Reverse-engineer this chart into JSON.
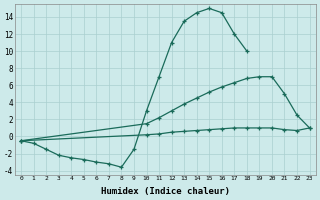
{
  "xlabel": "Humidex (Indice chaleur)",
  "background_color": "#cdeaea",
  "grid_color": "#aacfcf",
  "line_color": "#1a6b5a",
  "xlim": [
    -0.5,
    23.5
  ],
  "ylim": [
    -4.5,
    15.5
  ],
  "xticks": [
    0,
    1,
    2,
    3,
    4,
    5,
    6,
    7,
    8,
    9,
    10,
    11,
    12,
    13,
    14,
    15,
    16,
    17,
    18,
    19,
    20,
    21,
    22,
    23
  ],
  "yticks": [
    -4,
    -2,
    0,
    2,
    4,
    6,
    8,
    10,
    12,
    14
  ],
  "line1_x": [
    0,
    1,
    2,
    3,
    4,
    5,
    6,
    7,
    8,
    9,
    10,
    11,
    12,
    13,
    14,
    15,
    16,
    17,
    18
  ],
  "line1_y": [
    -0.5,
    -0.8,
    -1.5,
    -2.2,
    -2.5,
    -2.7,
    -3.0,
    -3.2,
    -3.6,
    -1.5,
    3.0,
    7.0,
    11.0,
    13.5,
    14.5,
    15.0,
    14.5,
    12.0,
    10.0
  ],
  "line2_x": [
    0,
    10,
    11,
    12,
    13,
    14,
    15,
    16,
    17,
    18,
    19,
    20,
    21,
    22,
    23
  ],
  "line2_y": [
    -0.5,
    1.5,
    2.2,
    3.0,
    3.8,
    4.5,
    5.2,
    5.8,
    6.3,
    6.8,
    7.0,
    7.0,
    5.0,
    2.5,
    1.0
  ],
  "line3_x": [
    0,
    10,
    11,
    12,
    13,
    14,
    15,
    16,
    17,
    18,
    19,
    20,
    21,
    22,
    23
  ],
  "line3_y": [
    -0.5,
    0.2,
    0.3,
    0.5,
    0.6,
    0.7,
    0.8,
    0.9,
    1.0,
    1.0,
    1.0,
    1.0,
    0.8,
    0.7,
    1.0
  ]
}
